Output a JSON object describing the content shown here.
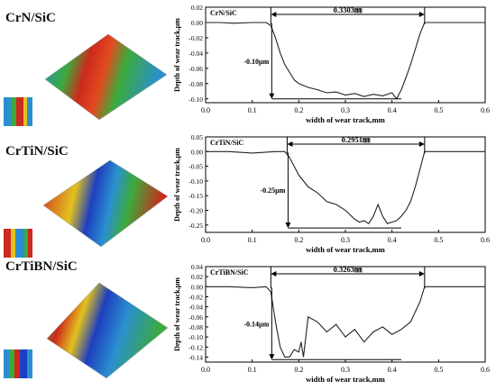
{
  "chart_data": [
    {
      "type": "line",
      "sample_label": "CrN/SiC",
      "legend_label": "CrN/SiC",
      "xlabel": "width of wear track,mm",
      "ylabel": "Depth of wear track,µm",
      "xlim": [
        0.0,
        0.6
      ],
      "ylim": [
        -0.105,
        0.02
      ],
      "xticks": [
        "0.0",
        "0.1",
        "0.2",
        "0.3",
        "0.4",
        "0.5",
        "0.6"
      ],
      "yticks": [
        "0.02",
        "0.00",
        "-0.02",
        "-0.04",
        "-0.06",
        "-0.08",
        "-0.10"
      ],
      "ytick_values": [
        0.02,
        0.0,
        -0.02,
        -0.04,
        -0.06,
        -0.08,
        -0.1
      ],
      "width_label": "0.3303㎜",
      "width_range": [
        0.14,
        0.47
      ],
      "depth_label": "-0.10µm",
      "depth_value": -0.1,
      "series": [
        {
          "x": [
            0.0,
            0.03,
            0.06,
            0.1,
            0.13,
            0.14,
            0.15,
            0.16,
            0.17,
            0.18,
            0.19,
            0.2,
            0.22,
            0.24,
            0.26,
            0.28,
            0.3,
            0.32,
            0.34,
            0.36,
            0.38,
            0.4,
            0.41,
            0.42,
            0.43,
            0.44,
            0.45,
            0.46,
            0.47,
            0.5,
            0.55,
            0.6
          ],
          "y": [
            0.0,
            0.0,
            -0.001,
            0.0,
            0.0,
            -0.004,
            -0.02,
            -0.04,
            -0.055,
            -0.065,
            -0.075,
            -0.08,
            -0.085,
            -0.088,
            -0.092,
            -0.091,
            -0.095,
            -0.093,
            -0.097,
            -0.094,
            -0.096,
            -0.092,
            -0.1,
            -0.088,
            -0.072,
            -0.055,
            -0.035,
            -0.015,
            0.0,
            0.0,
            0.0,
            0.0
          ]
        }
      ]
    },
    {
      "type": "line",
      "sample_label": "CrTiN/SiC",
      "legend_label": "CrTiN/SiC",
      "xlabel": "width of wear track,mm",
      "ylabel": "Depth of wear track,µm",
      "xlim": [
        0.0,
        0.6
      ],
      "ylim": [
        -0.275,
        0.05
      ],
      "xticks": [
        "0.0",
        "0.1",
        "0.2",
        "0.3",
        "0.4",
        "0.5",
        "0.6"
      ],
      "yticks": [
        "0.05",
        "0.00",
        "-0.05",
        "-0.10",
        "-0.15",
        "-0.20",
        "-0.25"
      ],
      "ytick_values": [
        0.05,
        0.0,
        -0.05,
        -0.1,
        -0.15,
        -0.2,
        -0.25
      ],
      "width_label": "0.2951㎜",
      "width_range": [
        0.175,
        0.47
      ],
      "depth_label": "-0.25µm",
      "depth_value": -0.26,
      "series": [
        {
          "x": [
            0.0,
            0.05,
            0.1,
            0.15,
            0.17,
            0.18,
            0.19,
            0.2,
            0.22,
            0.24,
            0.26,
            0.28,
            0.3,
            0.32,
            0.33,
            0.34,
            0.35,
            0.36,
            0.37,
            0.38,
            0.39,
            0.4,
            0.41,
            0.42,
            0.43,
            0.44,
            0.45,
            0.46,
            0.47,
            0.5,
            0.55,
            0.6
          ],
          "y": [
            0.0,
            0.0,
            -0.005,
            0.0,
            0.0,
            -0.02,
            -0.05,
            -0.08,
            -0.12,
            -0.14,
            -0.17,
            -0.18,
            -0.2,
            -0.23,
            -0.24,
            -0.235,
            -0.245,
            -0.22,
            -0.18,
            -0.22,
            -0.245,
            -0.24,
            -0.235,
            -0.22,
            -0.2,
            -0.17,
            -0.12,
            -0.06,
            0.0,
            0.0,
            0.0,
            0.0
          ]
        }
      ]
    },
    {
      "type": "line",
      "sample_label": "CrTiBN/SiC",
      "legend_label": "CrTiBN/SiC",
      "xlabel": "width of wear track,mm",
      "ylabel": "Depth of wear track,µm",
      "xlim": [
        0.0,
        0.6
      ],
      "ylim": [
        -0.15,
        0.04
      ],
      "xticks": [
        "0.0",
        "0.1",
        "0.2",
        "0.3",
        "0.4",
        "0.5",
        "0.6"
      ],
      "yticks": [
        "0.04",
        "0.02",
        "0.00",
        "-0.02",
        "-0.04",
        "-0.06",
        "-0.08",
        "-0.10",
        "-0.12",
        "-0.14"
      ],
      "ytick_values": [
        0.04,
        0.02,
        0.0,
        -0.02,
        -0.04,
        -0.06,
        -0.08,
        -0.1,
        -0.12,
        -0.14
      ],
      "width_label": "0.3263㎜",
      "width_range": [
        0.14,
        0.47
      ],
      "depth_label": "-0.14µm",
      "depth_value": -0.145,
      "series": [
        {
          "x": [
            0.0,
            0.05,
            0.1,
            0.13,
            0.14,
            0.15,
            0.16,
            0.17,
            0.18,
            0.19,
            0.2,
            0.205,
            0.21,
            0.22,
            0.24,
            0.26,
            0.28,
            0.3,
            0.32,
            0.34,
            0.36,
            0.38,
            0.4,
            0.42,
            0.44,
            0.46,
            0.47,
            0.5,
            0.55,
            0.6
          ],
          "y": [
            0.0,
            0.0,
            -0.002,
            0.0,
            -0.01,
            -0.07,
            -0.12,
            -0.14,
            -0.14,
            -0.125,
            -0.13,
            -0.11,
            -0.14,
            -0.06,
            -0.07,
            -0.09,
            -0.075,
            -0.1,
            -0.085,
            -0.11,
            -0.09,
            -0.08,
            -0.095,
            -0.085,
            -0.07,
            -0.03,
            0.0,
            0.0,
            0.0,
            0.0
          ]
        }
      ]
    }
  ],
  "colors": {
    "line": "#222222",
    "axis": "#000000",
    "surface_high": "#cc2a1e",
    "surface_mid": "#3caa3c",
    "surface_low": "#1e3fbf"
  }
}
